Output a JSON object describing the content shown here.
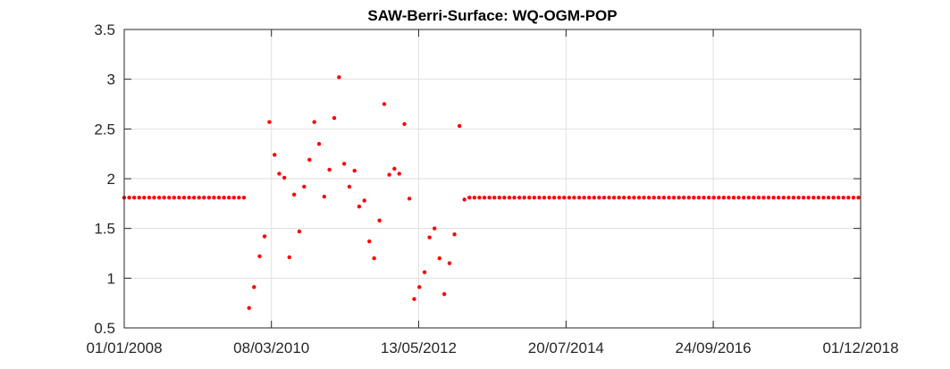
{
  "chart_data": {
    "type": "scatter",
    "title": "SAW-Berri-Surface: WQ-OGM-POP",
    "xlabel": "",
    "ylabel": "",
    "x_axis_type": "date",
    "xlim": [
      "2008-01-01",
      "2018-12-01"
    ],
    "ylim": [
      0.5,
      3.5
    ],
    "x_ticks": [
      {
        "date": "2008-01-01",
        "label": "01/01/2008"
      },
      {
        "date": "2010-03-08",
        "label": "08/03/2010"
      },
      {
        "date": "2012-05-13",
        "label": "13/05/2012"
      },
      {
        "date": "2014-07-20",
        "label": "20/07/2014"
      },
      {
        "date": "2016-09-24",
        "label": "24/09/2016"
      },
      {
        "date": "2018-12-01",
        "label": "01/12/2018"
      }
    ],
    "y_ticks": [
      {
        "value": 0.5,
        "label": "0.5"
      },
      {
        "value": 1,
        "label": "1"
      },
      {
        "value": 1.5,
        "label": "1.5"
      },
      {
        "value": 2,
        "label": "2"
      },
      {
        "value": 2.5,
        "label": "2.5"
      },
      {
        "value": 3,
        "label": "3"
      },
      {
        "value": 3.5,
        "label": "3.5"
      }
    ],
    "grid": true,
    "series": [
      {
        "color": "#ff0000",
        "marker": "dot",
        "points": [
          {
            "x": "2008-01-01",
            "y": 1.81
          },
          {
            "x": "2008-01-28",
            "y": 1.81
          },
          {
            "x": "2008-02-24",
            "y": 1.81
          },
          {
            "x": "2008-03-22",
            "y": 1.81
          },
          {
            "x": "2008-04-18",
            "y": 1.81
          },
          {
            "x": "2008-05-15",
            "y": 1.81
          },
          {
            "x": "2008-06-11",
            "y": 1.81
          },
          {
            "x": "2008-07-08",
            "y": 1.81
          },
          {
            "x": "2008-08-04",
            "y": 1.81
          },
          {
            "x": "2008-08-31",
            "y": 1.81
          },
          {
            "x": "2008-09-27",
            "y": 1.81
          },
          {
            "x": "2008-10-24",
            "y": 1.81
          },
          {
            "x": "2008-11-20",
            "y": 1.81
          },
          {
            "x": "2008-12-17",
            "y": 1.81
          },
          {
            "x": "2009-01-13",
            "y": 1.81
          },
          {
            "x": "2009-02-09",
            "y": 1.81
          },
          {
            "x": "2009-03-08",
            "y": 1.81
          },
          {
            "x": "2009-04-04",
            "y": 1.81
          },
          {
            "x": "2009-05-01",
            "y": 1.81
          },
          {
            "x": "2009-05-28",
            "y": 1.81
          },
          {
            "x": "2009-06-24",
            "y": 1.81
          },
          {
            "x": "2009-07-21",
            "y": 1.81
          },
          {
            "x": "2009-08-17",
            "y": 1.81
          },
          {
            "x": "2009-09-13",
            "y": 1.81
          },
          {
            "x": "2009-10-10",
            "y": 1.81
          },
          {
            "x": "2009-11-07",
            "y": 0.7
          },
          {
            "x": "2009-12-04",
            "y": 0.91
          },
          {
            "x": "2010-01-03",
            "y": 1.22
          },
          {
            "x": "2010-01-30",
            "y": 1.42
          },
          {
            "x": "2010-02-25",
            "y": 2.57
          },
          {
            "x": "2010-03-25",
            "y": 2.24
          },
          {
            "x": "2010-04-19",
            "y": 2.05
          },
          {
            "x": "2010-05-17",
            "y": 2.01
          },
          {
            "x": "2010-06-13",
            "y": 1.21
          },
          {
            "x": "2010-07-09",
            "y": 1.84
          },
          {
            "x": "2010-08-06",
            "y": 1.47
          },
          {
            "x": "2010-09-01",
            "y": 1.92
          },
          {
            "x": "2010-09-30",
            "y": 2.19
          },
          {
            "x": "2010-10-26",
            "y": 2.57
          },
          {
            "x": "2010-11-21",
            "y": 2.35
          },
          {
            "x": "2010-12-19",
            "y": 1.82
          },
          {
            "x": "2011-01-16",
            "y": 2.09
          },
          {
            "x": "2011-02-11",
            "y": 2.61
          },
          {
            "x": "2011-03-09",
            "y": 3.02
          },
          {
            "x": "2011-04-06",
            "y": 2.15
          },
          {
            "x": "2011-05-04",
            "y": 1.92
          },
          {
            "x": "2011-06-01",
            "y": 2.08
          },
          {
            "x": "2011-06-26",
            "y": 1.72
          },
          {
            "x": "2011-07-24",
            "y": 1.78
          },
          {
            "x": "2011-08-20",
            "y": 1.37
          },
          {
            "x": "2011-09-15",
            "y": 1.2
          },
          {
            "x": "2011-10-14",
            "y": 1.58
          },
          {
            "x": "2011-11-09",
            "y": 2.75
          },
          {
            "x": "2011-12-06",
            "y": 2.04
          },
          {
            "x": "2012-01-03",
            "y": 2.1
          },
          {
            "x": "2012-01-29",
            "y": 2.05
          },
          {
            "x": "2012-02-26",
            "y": 2.55
          },
          {
            "x": "2012-03-24",
            "y": 1.8
          },
          {
            "x": "2012-04-19",
            "y": 0.79
          },
          {
            "x": "2012-05-17",
            "y": 0.91
          },
          {
            "x": "2012-06-14",
            "y": 1.06
          },
          {
            "x": "2012-07-11",
            "y": 1.41
          },
          {
            "x": "2012-08-07",
            "y": 1.5
          },
          {
            "x": "2012-09-03",
            "y": 1.2
          },
          {
            "x": "2012-09-29",
            "y": 0.84
          },
          {
            "x": "2012-10-27",
            "y": 1.15
          },
          {
            "x": "2012-11-23",
            "y": 1.44
          },
          {
            "x": "2012-12-20",
            "y": 2.53
          },
          {
            "x": "2013-01-16",
            "y": 1.79
          },
          {
            "x": "2013-02-12",
            "y": 1.81
          },
          {
            "x": "2013-03-11",
            "y": 1.81
          },
          {
            "x": "2013-04-07",
            "y": 1.81
          },
          {
            "x": "2013-05-04",
            "y": 1.81
          },
          {
            "x": "2013-05-31",
            "y": 1.81
          },
          {
            "x": "2013-06-27",
            "y": 1.81
          },
          {
            "x": "2013-07-24",
            "y": 1.81
          },
          {
            "x": "2013-08-20",
            "y": 1.81
          },
          {
            "x": "2013-09-16",
            "y": 1.81
          },
          {
            "x": "2013-10-13",
            "y": 1.81
          },
          {
            "x": "2013-11-09",
            "y": 1.81
          },
          {
            "x": "2013-12-06",
            "y": 1.81
          },
          {
            "x": "2014-01-02",
            "y": 1.81
          },
          {
            "x": "2014-01-29",
            "y": 1.81
          },
          {
            "x": "2014-02-25",
            "y": 1.81
          },
          {
            "x": "2014-03-24",
            "y": 1.81
          },
          {
            "x": "2014-04-20",
            "y": 1.81
          },
          {
            "x": "2014-05-17",
            "y": 1.81
          },
          {
            "x": "2014-06-13",
            "y": 1.81
          },
          {
            "x": "2014-07-10",
            "y": 1.81
          },
          {
            "x": "2014-08-06",
            "y": 1.81
          },
          {
            "x": "2014-09-02",
            "y": 1.81
          },
          {
            "x": "2014-09-29",
            "y": 1.81
          },
          {
            "x": "2014-10-26",
            "y": 1.81
          },
          {
            "x": "2014-11-22",
            "y": 1.81
          },
          {
            "x": "2014-12-19",
            "y": 1.81
          },
          {
            "x": "2015-01-15",
            "y": 1.81
          },
          {
            "x": "2015-02-11",
            "y": 1.81
          },
          {
            "x": "2015-03-10",
            "y": 1.81
          },
          {
            "x": "2015-04-06",
            "y": 1.81
          },
          {
            "x": "2015-05-03",
            "y": 1.81
          },
          {
            "x": "2015-05-30",
            "y": 1.81
          },
          {
            "x": "2015-06-26",
            "y": 1.81
          },
          {
            "x": "2015-07-23",
            "y": 1.81
          },
          {
            "x": "2015-08-19",
            "y": 1.81
          },
          {
            "x": "2015-09-15",
            "y": 1.81
          },
          {
            "x": "2015-10-12",
            "y": 1.81
          },
          {
            "x": "2015-11-08",
            "y": 1.81
          },
          {
            "x": "2015-12-05",
            "y": 1.81
          },
          {
            "x": "2016-01-01",
            "y": 1.81
          },
          {
            "x": "2016-01-28",
            "y": 1.81
          },
          {
            "x": "2016-02-24",
            "y": 1.81
          },
          {
            "x": "2016-03-22",
            "y": 1.81
          },
          {
            "x": "2016-04-18",
            "y": 1.81
          },
          {
            "x": "2016-05-15",
            "y": 1.81
          },
          {
            "x": "2016-06-11",
            "y": 1.81
          },
          {
            "x": "2016-07-08",
            "y": 1.81
          },
          {
            "x": "2016-08-04",
            "y": 1.81
          },
          {
            "x": "2016-08-31",
            "y": 1.81
          },
          {
            "x": "2016-09-27",
            "y": 1.81
          },
          {
            "x": "2016-10-24",
            "y": 1.81
          },
          {
            "x": "2016-11-20",
            "y": 1.81
          },
          {
            "x": "2016-12-17",
            "y": 1.81
          },
          {
            "x": "2017-01-13",
            "y": 1.81
          },
          {
            "x": "2017-02-09",
            "y": 1.81
          },
          {
            "x": "2017-03-08",
            "y": 1.81
          },
          {
            "x": "2017-04-04",
            "y": 1.81
          },
          {
            "x": "2017-05-01",
            "y": 1.81
          },
          {
            "x": "2017-05-28",
            "y": 1.81
          },
          {
            "x": "2017-06-24",
            "y": 1.81
          },
          {
            "x": "2017-07-21",
            "y": 1.81
          },
          {
            "x": "2017-08-17",
            "y": 1.81
          },
          {
            "x": "2017-09-13",
            "y": 1.81
          },
          {
            "x": "2017-10-10",
            "y": 1.81
          },
          {
            "x": "2017-11-06",
            "y": 1.81
          },
          {
            "x": "2017-12-03",
            "y": 1.81
          },
          {
            "x": "2017-12-30",
            "y": 1.81
          },
          {
            "x": "2018-01-26",
            "y": 1.81
          },
          {
            "x": "2018-02-22",
            "y": 1.81
          },
          {
            "x": "2018-03-21",
            "y": 1.81
          },
          {
            "x": "2018-04-17",
            "y": 1.81
          },
          {
            "x": "2018-05-14",
            "y": 1.81
          },
          {
            "x": "2018-06-10",
            "y": 1.81
          },
          {
            "x": "2018-07-07",
            "y": 1.81
          },
          {
            "x": "2018-08-03",
            "y": 1.81
          },
          {
            "x": "2018-08-30",
            "y": 1.81
          },
          {
            "x": "2018-09-26",
            "y": 1.81
          },
          {
            "x": "2018-10-23",
            "y": 1.81
          },
          {
            "x": "2018-11-19",
            "y": 1.81
          }
        ]
      }
    ]
  }
}
